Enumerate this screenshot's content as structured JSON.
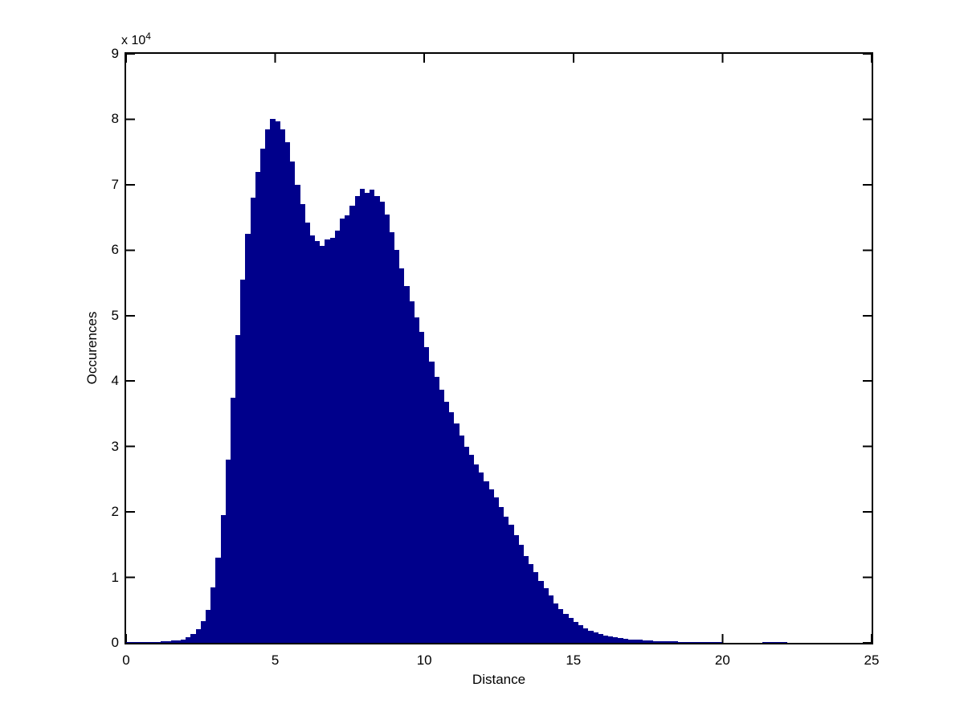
{
  "figure": {
    "background": "#ffffff",
    "axis_color": "#000000",
    "bar_color": "#00008B"
  },
  "chart_data": {
    "type": "bar",
    "subtype": "histogram",
    "title": "",
    "xlabel": "Distance",
    "ylabel": "Occurences",
    "y_multiplier_label": "x 10",
    "y_multiplier_exponent": "4",
    "xlim": [
      0,
      25
    ],
    "ylim": [
      0,
      90000
    ],
    "grid": false,
    "legend": null,
    "xticks": [
      0,
      5,
      10,
      15,
      20,
      25
    ],
    "xtick_labels": [
      "0",
      "5",
      "10",
      "15",
      "20",
      "25"
    ],
    "ytick_values": [
      0,
      10000,
      20000,
      30000,
      40000,
      50000,
      60000,
      70000,
      80000,
      90000
    ],
    "ytick_labels": [
      "0",
      "1",
      "2",
      "3",
      "4",
      "5",
      "6",
      "7",
      "8",
      "9"
    ],
    "bin_start": 0,
    "bin_width": 0.1666667,
    "num_bins": 150,
    "values": [
      30,
      40,
      50,
      60,
      80,
      100,
      150,
      200,
      260,
      330,
      420,
      550,
      900,
      1300,
      2100,
      3300,
      5000,
      8500,
      13000,
      19500,
      28000,
      37500,
      47000,
      55500,
      62500,
      68000,
      72000,
      75500,
      78500,
      80000,
      79700,
      78500,
      76500,
      73500,
      70000,
      67000,
      64200,
      62300,
      61400,
      60700,
      61600,
      61900,
      63000,
      64800,
      65300,
      66800,
      68300,
      69400,
      68700,
      69300,
      68300,
      67400,
      65400,
      62800,
      60000,
      57200,
      54500,
      52200,
      49700,
      47500,
      45200,
      43000,
      40700,
      38700,
      36800,
      35200,
      33500,
      31700,
      30000,
      28700,
      27300,
      26000,
      24700,
      23500,
      22200,
      20700,
      19300,
      18000,
      16500,
      15000,
      13300,
      12000,
      10800,
      9500,
      8300,
      7200,
      6000,
      5100,
      4400,
      3800,
      3200,
      2700,
      2200,
      1900,
      1600,
      1400,
      1150,
      1000,
      850,
      750,
      650,
      550,
      500,
      450,
      400,
      350,
      300,
      280,
      250,
      220,
      200,
      180,
      160,
      140,
      120,
      110,
      100,
      90,
      80,
      70,
      0,
      0,
      0,
      0,
      0,
      0,
      0,
      0,
      40,
      40,
      30,
      30,
      40,
      0,
      0,
      0,
      0,
      0,
      0,
      0,
      0,
      0,
      0,
      0,
      0,
      0,
      0,
      0,
      0,
      0
    ],
    "annotations": {
      "peak1": {
        "x": 4.9,
        "value": 80000
      },
      "valley": {
        "x": 6.6,
        "value": 60700
      },
      "peak2": {
        "x": 8.1,
        "value": 69400
      }
    }
  }
}
